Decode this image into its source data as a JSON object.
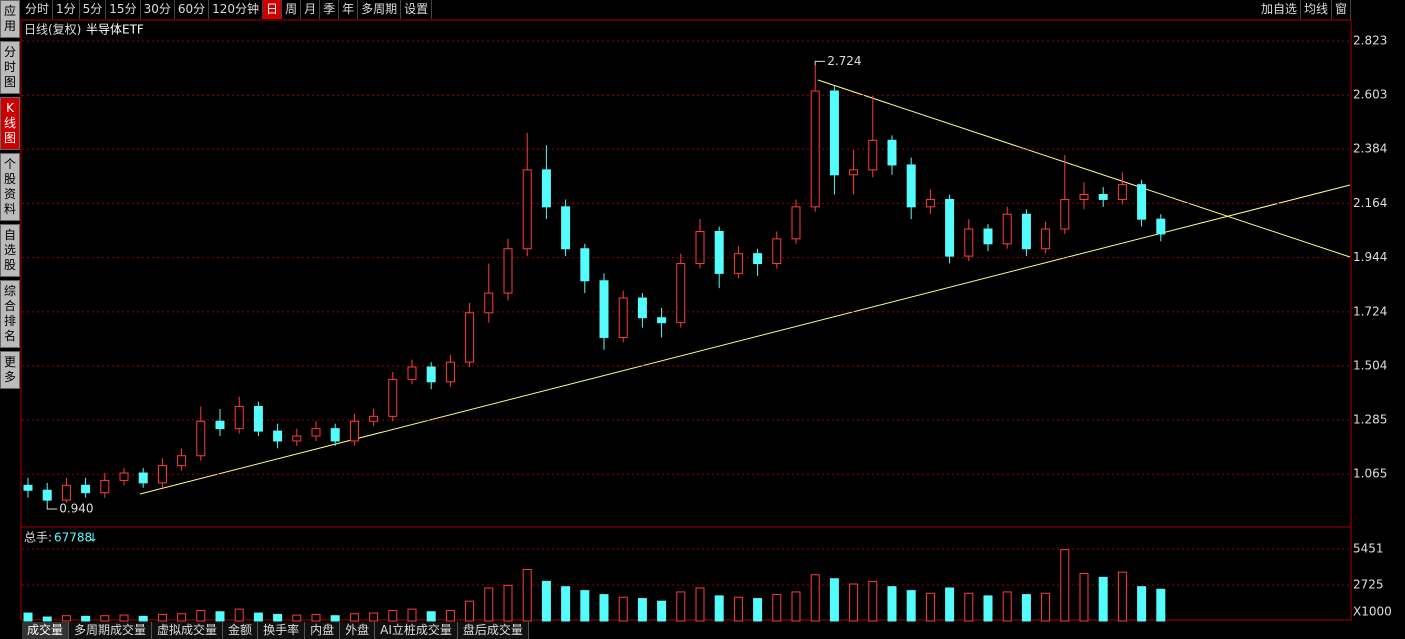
{
  "toolbar": {
    "periods": [
      "分时",
      "1分",
      "5分",
      "15分",
      "30分",
      "60分",
      "120分钟",
      "日",
      "周",
      "月",
      "季",
      "年",
      "多周期",
      "设置"
    ],
    "tools": [
      "加自选",
      "均线",
      "窗"
    ]
  },
  "sidebar": [
    "应用",
    "分时图",
    "K线图",
    "个股资料",
    "自选股",
    "综合排名",
    "更多"
  ],
  "chart_data": {
    "type": "candlestick",
    "title": "日线(复权)",
    "name": "半导体ETF",
    "grid": true,
    "up_color": "#ff3c3c",
    "down_color": "#54fcfc",
    "open": [
      1.02,
      1.0,
      0.96,
      1.02,
      0.99,
      1.04,
      1.07,
      1.03,
      1.1,
      1.14,
      1.28,
      1.25,
      1.34,
      1.24,
      1.2,
      1.22,
      1.25,
      1.2,
      1.28,
      1.3,
      1.45,
      1.5,
      1.44,
      1.52,
      1.72,
      1.8,
      1.98,
      2.3,
      2.15,
      1.98,
      1.85,
      1.62,
      1.78,
      1.7,
      1.68,
      1.92,
      2.05,
      1.88,
      1.96,
      1.92,
      2.02,
      2.15,
      2.62,
      2.28,
      2.3,
      2.42,
      2.32,
      2.15,
      2.18,
      1.95,
      2.06,
      2.0,
      2.12,
      1.98,
      2.06,
      2.18,
      2.2,
      2.18,
      2.24,
      2.1
    ],
    "high": [
      1.05,
      1.03,
      1.05,
      1.05,
      1.07,
      1.09,
      1.09,
      1.13,
      1.17,
      1.34,
      1.33,
      1.38,
      1.36,
      1.27,
      1.25,
      1.28,
      1.27,
      1.31,
      1.33,
      1.48,
      1.53,
      1.52,
      1.55,
      1.76,
      1.92,
      2.02,
      2.45,
      2.4,
      2.18,
      2.0,
      1.88,
      1.81,
      1.8,
      1.74,
      1.96,
      2.1,
      2.07,
      1.99,
      1.98,
      2.05,
      2.18,
      2.724,
      2.64,
      2.38,
      2.6,
      2.44,
      2.35,
      2.22,
      2.2,
      2.1,
      2.08,
      2.15,
      2.14,
      2.09,
      2.36,
      2.25,
      2.23,
      2.29,
      2.26,
      2.12
    ],
    "low": [
      0.97,
      0.94,
      0.95,
      0.97,
      0.97,
      1.02,
      1.01,
      1.01,
      1.08,
      1.12,
      1.22,
      1.23,
      1.22,
      1.17,
      1.18,
      1.2,
      1.18,
      1.18,
      1.26,
      1.28,
      1.43,
      1.41,
      1.42,
      1.5,
      1.68,
      1.77,
      1.95,
      2.1,
      1.95,
      1.8,
      1.57,
      1.6,
      1.66,
      1.62,
      1.66,
      1.9,
      1.82,
      1.86,
      1.87,
      1.9,
      2.0,
      2.13,
      2.2,
      2.2,
      2.27,
      2.28,
      2.1,
      2.12,
      1.92,
      1.93,
      1.97,
      1.98,
      1.95,
      1.96,
      2.04,
      2.14,
      2.15,
      2.16,
      2.07,
      2.01
    ],
    "close": [
      1.0,
      0.96,
      1.02,
      0.99,
      1.04,
      1.07,
      1.03,
      1.1,
      1.14,
      1.28,
      1.25,
      1.34,
      1.24,
      1.2,
      1.22,
      1.25,
      1.2,
      1.28,
      1.3,
      1.45,
      1.5,
      1.44,
      1.52,
      1.72,
      1.8,
      1.98,
      2.3,
      2.15,
      1.98,
      1.85,
      1.62,
      1.78,
      1.7,
      1.68,
      1.92,
      2.05,
      1.88,
      1.96,
      1.92,
      2.02,
      2.15,
      2.62,
      2.28,
      2.3,
      2.42,
      2.32,
      2.15,
      2.18,
      1.95,
      2.06,
      2.0,
      2.12,
      1.98,
      2.06,
      2.18,
      2.2,
      2.18,
      2.24,
      2.1,
      2.04
    ],
    "ylim": [
      0.859,
      2.9
    ],
    "yticks": [
      2.823,
      2.603,
      2.384,
      2.164,
      1.944,
      1.724,
      1.504,
      1.285,
      1.065
    ],
    "annotations": [
      {
        "index": 41,
        "value": 2.724,
        "label": "2.724"
      },
      {
        "index": 1,
        "value": 0.94,
        "label": "0.940"
      }
    ]
  },
  "volume": {
    "total_label": "总手:",
    "total": 67788,
    "total_arrow": "↓",
    "unit": "X1000",
    "values": [
      600,
      300,
      400,
      350,
      400,
      450,
      350,
      500,
      550,
      800,
      700,
      900,
      600,
      500,
      450,
      500,
      400,
      550,
      600,
      800,
      900,
      700,
      800,
      1500,
      2500,
      2700,
      3900,
      3000,
      2600,
      2300,
      2000,
      1800,
      1700,
      1500,
      2200,
      2500,
      1900,
      1800,
      1700,
      2000,
      2200,
      3500,
      3200,
      2800,
      3000,
      2600,
      2300,
      2100,
      2500,
      2100,
      1900,
      2200,
      2000,
      2100,
      5400,
      3600,
      3300,
      3700,
      2600,
      2400
    ],
    "ylim": [
      0,
      6890
    ],
    "yticks": [
      2725,
      5451
    ]
  },
  "tabs": [
    "成交量",
    "多周期成交量",
    "虚拟成交量",
    "金额",
    "换手率",
    "内盘",
    "外盘",
    "AI立桩成交量",
    "盘后成交量"
  ]
}
